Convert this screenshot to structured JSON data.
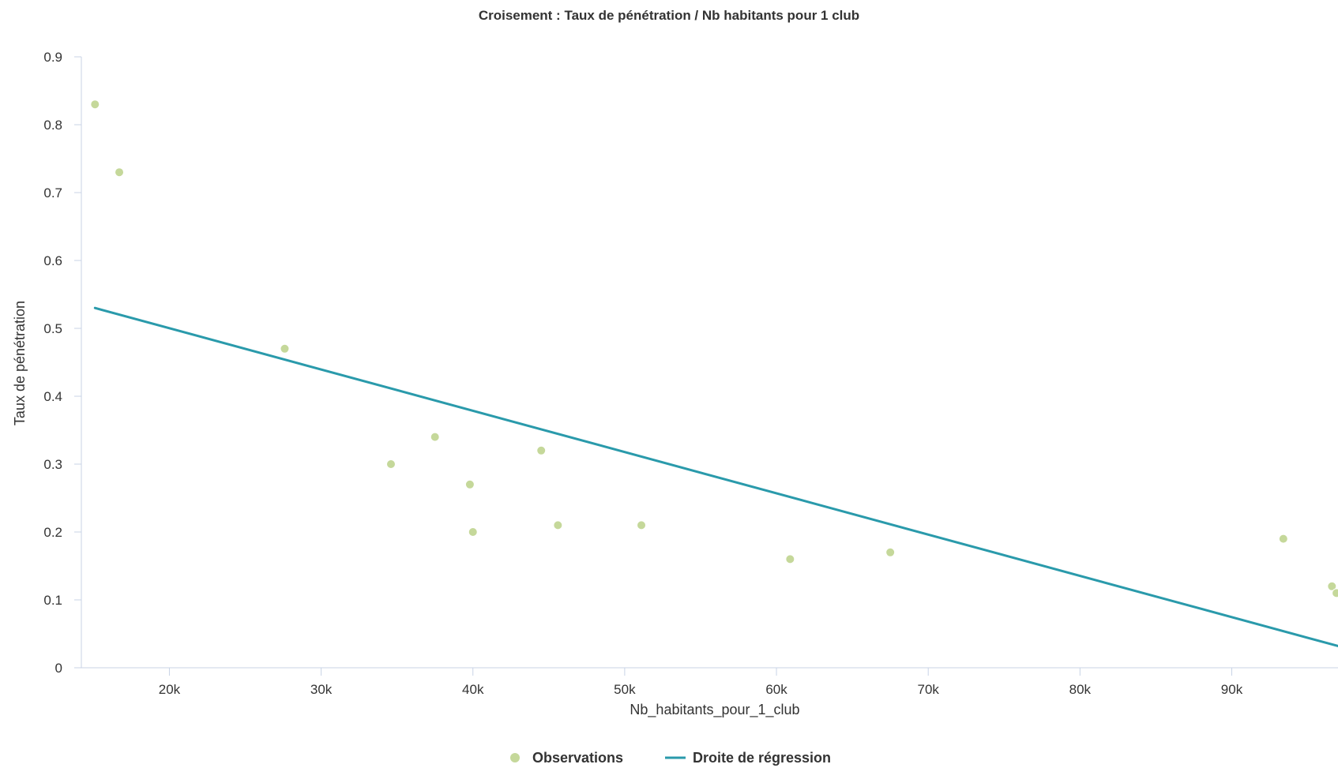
{
  "chart_data": {
    "type": "scatter",
    "title": "Croisement : Taux de pénétration / Nb habitants pour 1 club",
    "xlabel": "Nb_habitants_pour_1_club",
    "ylabel": "Taux de pénétration",
    "xlim": [
      14200,
      97000
    ],
    "ylim": [
      0,
      0.9
    ],
    "x_ticks": [
      {
        "value": 20000,
        "label": "20k"
      },
      {
        "value": 30000,
        "label": "30k"
      },
      {
        "value": 40000,
        "label": "40k"
      },
      {
        "value": 50000,
        "label": "50k"
      },
      {
        "value": 60000,
        "label": "60k"
      },
      {
        "value": 70000,
        "label": "70k"
      },
      {
        "value": 80000,
        "label": "80k"
      },
      {
        "value": 90000,
        "label": "90k"
      }
    ],
    "y_ticks": [
      {
        "value": 0,
        "label": "0"
      },
      {
        "value": 0.1,
        "label": "0.1"
      },
      {
        "value": 0.2,
        "label": "0.2"
      },
      {
        "value": 0.3,
        "label": "0.3"
      },
      {
        "value": 0.4,
        "label": "0.4"
      },
      {
        "value": 0.5,
        "label": "0.5"
      },
      {
        "value": 0.6,
        "label": "0.6"
      },
      {
        "value": 0.7,
        "label": "0.7"
      },
      {
        "value": 0.8,
        "label": "0.8"
      },
      {
        "value": 0.9,
        "label": "0.9"
      }
    ],
    "grid": false,
    "legend_position": "bottom-center",
    "series": [
      {
        "name": "Observations",
        "type": "scatter",
        "color": "#c5d89a",
        "points": [
          {
            "x": 15100,
            "y": 0.83
          },
          {
            "x": 16700,
            "y": 0.73
          },
          {
            "x": 27600,
            "y": 0.47
          },
          {
            "x": 34600,
            "y": 0.3
          },
          {
            "x": 37500,
            "y": 0.34
          },
          {
            "x": 39800,
            "y": 0.27
          },
          {
            "x": 40000,
            "y": 0.2
          },
          {
            "x": 44500,
            "y": 0.32
          },
          {
            "x": 45600,
            "y": 0.21
          },
          {
            "x": 51100,
            "y": 0.21
          },
          {
            "x": 60900,
            "y": 0.16
          },
          {
            "x": 67500,
            "y": 0.17
          },
          {
            "x": 93400,
            "y": 0.19
          },
          {
            "x": 96600,
            "y": 0.12
          },
          {
            "x": 96900,
            "y": 0.11
          }
        ]
      },
      {
        "name": "Droite de régression",
        "type": "line",
        "color": "#2a9aab",
        "points": [
          {
            "x": 15100,
            "y": 0.53
          },
          {
            "x": 97000,
            "y": 0.032
          }
        ]
      }
    ]
  }
}
